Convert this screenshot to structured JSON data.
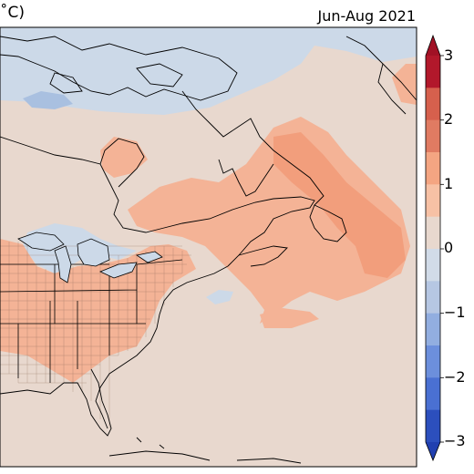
{
  "title": {
    "units_fragment": "˚C)",
    "period": "Jun-Aug 2021"
  },
  "colorbar": {
    "ticks": [
      "3",
      "2",
      "1",
      "0",
      "−1",
      "−2",
      "−3"
    ],
    "bins": [
      "#b2182b",
      "#d6604d",
      "#e07b62",
      "#f4a582",
      "#f7c1a5",
      "#e8d8ce",
      "#d1dbe8",
      "#b6c7e3",
      "#92aee0",
      "#6c8fdc",
      "#4a70d2",
      "#2c4fbd"
    ],
    "extend": "both"
  },
  "map": {
    "background_anomaly_color": "#e8d8ce",
    "warm_color": "#f4b396",
    "warmer_color": "#f29e7c",
    "cool_color": "#ccd9e8",
    "cooler_color": "#a9c0e0",
    "coast_color": "#000000",
    "county_color": "#7b5a4c"
  }
}
